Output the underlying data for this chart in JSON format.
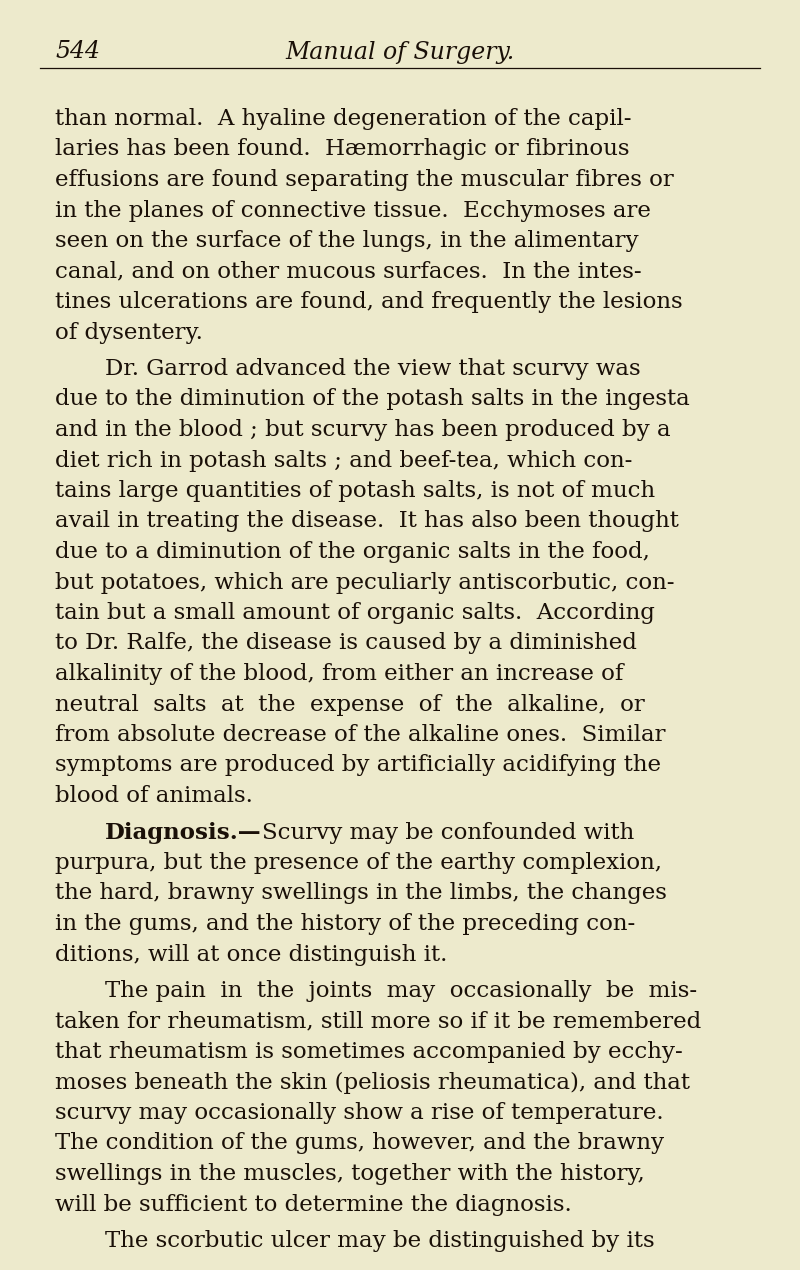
{
  "background_color": "#edeacc",
  "page_number": "544",
  "header_title": "Manual of Surgery.",
  "text_color": "#1a1008",
  "header_font_size": 17,
  "body_font_size": 16.5,
  "paragraphs": [
    {
      "indent": false,
      "bold_start": null,
      "lines": [
        "than normal.  A hyaline degeneration of the capil-",
        "laries has been found.  Hæmorrhagic or fibrinous",
        "effusions are found separating the muscular fibres or",
        "in the planes of connective tissue.  Ecchymoses are",
        "seen on the surface of the lungs, in the alimentary",
        "canal, and on other mucous surfaces.  In the intes-",
        "tines ulcerations are found, and frequently the lesions",
        "of dysentery."
      ]
    },
    {
      "indent": true,
      "bold_start": null,
      "lines": [
        "Dr. Garrod advanced the view that scurvy was",
        "due to the diminution of the potash salts in the ingesta",
        "and in the blood ; but scurvy has been produced by a",
        "diet rich in potash salts ; and beef-tea, which con-",
        "tains large quantities of potash salts, is not of much",
        "avail in treating the disease.  It has also been thought",
        "due to a diminution of the organic salts in the food,",
        "but potatoes, which are peculiarly antiscorbutic, con-",
        "tain but a small amount of organic salts.  According",
        "to Dr. Ralfe, the disease is caused by a diminished",
        "alkalinity of the blood, from either an increase of",
        "neutral  salts  at  the  expense  of  the  alkaline,  or",
        "from absolute decrease of the alkaline ones.  Similar",
        "symptoms are produced by artificially acidifying the",
        "blood of animals."
      ]
    },
    {
      "indent": true,
      "bold_start": "Diagnosis.—",
      "lines": [
        "Scurvy may be confounded with",
        "purpura, but the presence of the earthy complexion,",
        "the hard, brawny swellings in the limbs, the changes",
        "in the gums, and the history of the preceding con-",
        "ditions, will at once distinguish it."
      ]
    },
    {
      "indent": true,
      "bold_start": null,
      "lines": [
        "The pain  in  the  joints  may  occasionally  be  mis-",
        "taken for rheumatism, still more so if it be remembered",
        "that rheumatism is sometimes accompanied by ecchy-",
        "moses beneath the skin (peliosis rheumatica), and that",
        "scurvy may occasionally show a rise of temperature.",
        "The condition of the gums, however, and the brawny",
        "swellings in the muscles, together with the history,",
        "will be sufficient to determine the diagnosis."
      ]
    },
    {
      "indent": true,
      "bold_start": null,
      "lines": [
        "The scorbutic ulcer may be distinguished by its"
      ]
    }
  ]
}
